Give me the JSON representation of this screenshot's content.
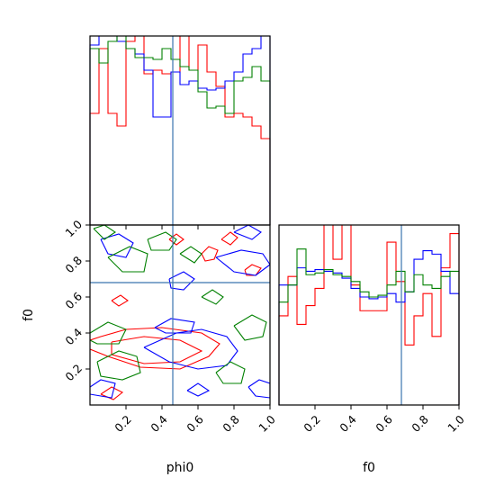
{
  "chart_data": [
    {
      "panel": "phi0-marginal",
      "type": "histogram-step",
      "xlim": [
        0,
        1
      ],
      "truth_x": 0.46,
      "series": [
        {
          "color": "#ff0000",
          "values": [
            0.62,
            0.98,
            0.62,
            0.55,
            1.02,
            1.3,
            0.84,
            0.86,
            0.84,
            0.85,
            1.3,
            0.86,
            1.0,
            0.85,
            0.77,
            0.6,
            0.62,
            0.6,
            0.55,
            0.48
          ]
        },
        {
          "color": "#0000ff",
          "values": [
            1.0,
            1.05,
            1.05,
            1.02,
            0.98,
            0.95,
            0.86,
            0.6,
            0.6,
            0.85,
            0.78,
            0.8,
            0.76,
            0.75,
            0.76,
            0.8,
            0.85,
            0.95,
            0.98,
            1.05
          ]
        },
        {
          "color": "#008000",
          "values": [
            0.98,
            0.9,
            1.02,
            1.05,
            0.98,
            0.93,
            0.93,
            0.92,
            0.98,
            0.92,
            0.88,
            0.86,
            0.74,
            0.65,
            0.66,
            0.62,
            0.8,
            0.82,
            0.88,
            0.8
          ]
        }
      ]
    },
    {
      "panel": "joint",
      "type": "contour",
      "xlim": [
        0,
        1
      ],
      "ylim": [
        0,
        1
      ],
      "truth_x": 0.46,
      "truth_y": 0.68,
      "x_ticks": [
        0.2,
        0.4,
        0.6,
        0.8,
        1.0
      ],
      "x_tick_labels": [
        "0.2",
        "0.4",
        "0.6",
        "0.8",
        "1.0"
      ],
      "y_ticks": [
        0.2,
        0.4,
        0.6,
        0.8,
        1.0
      ],
      "y_tick_labels": [
        "0.2",
        "0.4",
        "0.6",
        "0.8",
        "1.0"
      ],
      "xlabel": "phi0",
      "ylabel": "f0",
      "series": [
        {
          "color": "#ff0000",
          "contours": [
            [
              [
                0.12,
                0.35
              ],
              [
                0.3,
                0.38
              ],
              [
                0.5,
                0.36
              ],
              [
                0.62,
                0.3
              ],
              [
                0.5,
                0.24
              ],
              [
                0.3,
                0.23
              ],
              [
                0.12,
                0.28
              ],
              [
                0.12,
                0.35
              ]
            ],
            [
              [
                0.0,
                0.31
              ],
              [
                0.1,
                0.27
              ],
              [
                0.28,
                0.21
              ],
              [
                0.5,
                0.2
              ],
              [
                0.66,
                0.27
              ],
              [
                0.72,
                0.34
              ],
              [
                0.62,
                0.4
              ],
              [
                0.4,
                0.43
              ],
              [
                0.2,
                0.42
              ],
              [
                0.06,
                0.38
              ],
              [
                0.0,
                0.36
              ]
            ],
            [
              [
                0.12,
                0.58
              ],
              [
                0.17,
                0.61
              ],
              [
                0.21,
                0.58
              ],
              [
                0.16,
                0.55
              ],
              [
                0.12,
                0.58
              ]
            ],
            [
              [
                0.62,
                0.84
              ],
              [
                0.66,
                0.88
              ],
              [
                0.71,
                0.86
              ],
              [
                0.69,
                0.81
              ],
              [
                0.64,
                0.8
              ],
              [
                0.62,
                0.84
              ]
            ],
            [
              [
                0.86,
                0.75
              ],
              [
                0.9,
                0.78
              ],
              [
                0.95,
                0.76
              ],
              [
                0.92,
                0.72
              ],
              [
                0.87,
                0.72
              ],
              [
                0.86,
                0.75
              ]
            ],
            [
              [
                0.44,
                0.92
              ],
              [
                0.48,
                0.95
              ],
              [
                0.52,
                0.92
              ],
              [
                0.48,
                0.89
              ],
              [
                0.44,
                0.92
              ]
            ],
            [
              [
                0.06,
                0.06
              ],
              [
                0.12,
                0.1
              ],
              [
                0.18,
                0.07
              ],
              [
                0.13,
                0.03
              ],
              [
                0.06,
                0.06
              ]
            ],
            [
              [
                0.73,
                0.92
              ],
              [
                0.78,
                0.96
              ],
              [
                0.82,
                0.93
              ],
              [
                0.78,
                0.89
              ],
              [
                0.73,
                0.92
              ]
            ]
          ]
        },
        {
          "color": "#0000ff",
          "contours": [
            [
              [
                0.3,
                0.32
              ],
              [
                0.48,
                0.4
              ],
              [
                0.62,
                0.42
              ],
              [
                0.76,
                0.38
              ],
              [
                0.82,
                0.3
              ],
              [
                0.76,
                0.22
              ],
              [
                0.6,
                0.2
              ],
              [
                0.44,
                0.24
              ],
              [
                0.3,
                0.32
              ]
            ],
            [
              [
                0.36,
                0.43
              ],
              [
                0.45,
                0.48
              ],
              [
                0.58,
                0.46
              ],
              [
                0.56,
                0.4
              ],
              [
                0.42,
                0.4
              ],
              [
                0.36,
                0.43
              ]
            ],
            [
              [
                0.44,
                0.7
              ],
              [
                0.52,
                0.74
              ],
              [
                0.58,
                0.7
              ],
              [
                0.52,
                0.64
              ],
              [
                0.45,
                0.65
              ],
              [
                0.44,
                0.7
              ]
            ],
            [
              [
                0.7,
                0.82
              ],
              [
                0.84,
                0.86
              ],
              [
                0.96,
                0.84
              ],
              [
                1.0,
                0.78
              ],
              [
                0.92,
                0.72
              ],
              [
                0.8,
                0.74
              ],
              [
                0.7,
                0.82
              ]
            ],
            [
              [
                0.06,
                0.92
              ],
              [
                0.16,
                0.95
              ],
              [
                0.24,
                0.9
              ],
              [
                0.2,
                0.82
              ],
              [
                0.1,
                0.84
              ],
              [
                0.06,
                0.92
              ]
            ],
            [
              [
                0.8,
                0.96
              ],
              [
                0.88,
                1.0
              ],
              [
                0.95,
                0.96
              ],
              [
                0.9,
                0.92
              ],
              [
                0.8,
                0.96
              ]
            ],
            [
              [
                0.0,
                0.1
              ],
              [
                0.06,
                0.14
              ],
              [
                0.14,
                0.12
              ],
              [
                0.12,
                0.04
              ],
              [
                0.0,
                0.06
              ]
            ],
            [
              [
                0.88,
                0.1
              ],
              [
                0.94,
                0.14
              ],
              [
                1.0,
                0.12
              ],
              [
                1.0,
                0.04
              ],
              [
                0.92,
                0.05
              ],
              [
                0.88,
                0.1
              ]
            ],
            [
              [
                0.54,
                0.08
              ],
              [
                0.6,
                0.12
              ],
              [
                0.66,
                0.08
              ],
              [
                0.6,
                0.05
              ],
              [
                0.54,
                0.08
              ]
            ]
          ]
        },
        {
          "color": "#008000",
          "contours": [
            [
              [
                0.04,
                0.24
              ],
              [
                0.16,
                0.3
              ],
              [
                0.26,
                0.27
              ],
              [
                0.28,
                0.18
              ],
              [
                0.18,
                0.14
              ],
              [
                0.06,
                0.16
              ],
              [
                0.04,
                0.24
              ]
            ],
            [
              [
                0.0,
                0.4
              ],
              [
                0.1,
                0.46
              ],
              [
                0.2,
                0.42
              ],
              [
                0.16,
                0.34
              ],
              [
                0.04,
                0.34
              ],
              [
                0.0,
                0.36
              ]
            ],
            [
              [
                0.1,
                0.82
              ],
              [
                0.22,
                0.88
              ],
              [
                0.32,
                0.84
              ],
              [
                0.3,
                0.74
              ],
              [
                0.18,
                0.74
              ],
              [
                0.1,
                0.82
              ]
            ],
            [
              [
                0.32,
                0.92
              ],
              [
                0.42,
                0.96
              ],
              [
                0.48,
                0.92
              ],
              [
                0.44,
                0.86
              ],
              [
                0.34,
                0.86
              ],
              [
                0.32,
                0.92
              ]
            ],
            [
              [
                0.8,
                0.44
              ],
              [
                0.9,
                0.5
              ],
              [
                0.98,
                0.46
              ],
              [
                0.96,
                0.38
              ],
              [
                0.86,
                0.36
              ],
              [
                0.8,
                0.44
              ]
            ],
            [
              [
                0.7,
                0.18
              ],
              [
                0.78,
                0.24
              ],
              [
                0.86,
                0.2
              ],
              [
                0.84,
                0.12
              ],
              [
                0.74,
                0.12
              ],
              [
                0.7,
                0.18
              ]
            ],
            [
              [
                0.5,
                0.84
              ],
              [
                0.56,
                0.88
              ],
              [
                0.62,
                0.84
              ],
              [
                0.58,
                0.79
              ],
              [
                0.5,
                0.84
              ]
            ],
            [
              [
                0.62,
                0.6
              ],
              [
                0.68,
                0.64
              ],
              [
                0.74,
                0.6
              ],
              [
                0.7,
                0.56
              ],
              [
                0.62,
                0.6
              ]
            ],
            [
              [
                0.02,
                0.98
              ],
              [
                0.08,
                1.0
              ],
              [
                0.14,
                0.96
              ],
              [
                0.08,
                0.92
              ],
              [
                0.02,
                0.98
              ]
            ]
          ]
        }
      ]
    },
    {
      "panel": "f0-marginal",
      "type": "histogram-step",
      "xlim": [
        0,
        1
      ],
      "truth_x": 0.68,
      "x_ticks": [
        0.2,
        0.4,
        0.6,
        0.8,
        1.0
      ],
      "x_tick_labels": [
        "0.2",
        "0.4",
        "0.6",
        "0.8",
        "1.0"
      ],
      "xlabel": "f0",
      "series": [
        {
          "color": "#ff0000",
          "values": [
            0.52,
            0.75,
            0.47,
            0.58,
            0.68,
            1.2,
            0.85,
            1.2,
            0.7,
            0.55,
            0.55,
            0.55,
            0.95,
            0.72,
            0.35,
            0.52,
            0.65,
            0.4,
            0.8,
            1.0
          ]
        },
        {
          "color": "#0000ff",
          "values": [
            0.7,
            0.7,
            0.8,
            0.78,
            0.79,
            0.78,
            0.77,
            0.74,
            0.68,
            0.63,
            0.62,
            0.63,
            0.65,
            0.6,
            0.66,
            0.85,
            0.9,
            0.88,
            0.78,
            0.65
          ]
        },
        {
          "color": "#008000",
          "values": [
            0.6,
            0.7,
            0.91,
            0.76,
            0.77,
            0.79,
            0.76,
            0.75,
            0.72,
            0.66,
            0.63,
            0.64,
            0.7,
            0.78,
            0.66,
            0.76,
            0.7,
            0.68,
            0.75,
            0.78
          ]
        }
      ]
    }
  ]
}
